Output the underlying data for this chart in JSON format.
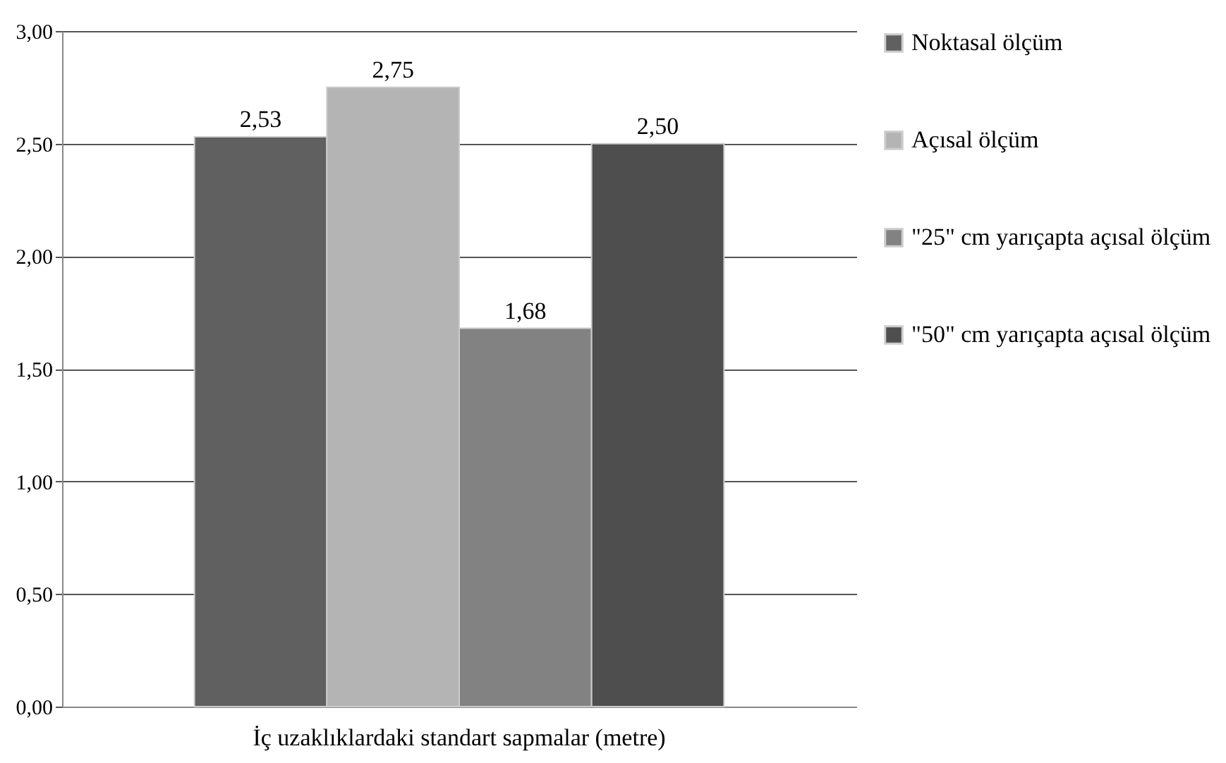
{
  "chart_data": {
    "type": "bar",
    "categories": [
      "İç uzaklıklardaki standart sapmalar (metre)"
    ],
    "series": [
      {
        "name": "Noktasal ölçüm",
        "color": "#606060",
        "values": [
          2.53
        ],
        "value_labels": [
          "2,53"
        ]
      },
      {
        "name": "Açısal ölçüm",
        "color": "#b4b4b4",
        "values": [
          2.75
        ],
        "value_labels": [
          "2,75"
        ]
      },
      {
        "name": "\"25\" cm yarıçapta açısal ölçüm",
        "color": "#828282",
        "values": [
          1.68
        ],
        "value_labels": [
          "1,68"
        ]
      },
      {
        "name": "\"50\" cm yarıçapta açısal ölçüm",
        "color": "#4e4e4e",
        "values": [
          2.5
        ],
        "value_labels": [
          "2,50"
        ]
      }
    ],
    "ylim": [
      0,
      3
    ],
    "yticks": [
      {
        "value": 0,
        "label": "0,00"
      },
      {
        "value": 0.5,
        "label": "0,50"
      },
      {
        "value": 1,
        "label": "1,00"
      },
      {
        "value": 1.5,
        "label": "1,50"
      },
      {
        "value": 2,
        "label": "2,00"
      },
      {
        "value": 2.5,
        "label": "2,50"
      },
      {
        "value": 3,
        "label": "3,00"
      }
    ],
    "grid": "y",
    "legend": "right"
  }
}
